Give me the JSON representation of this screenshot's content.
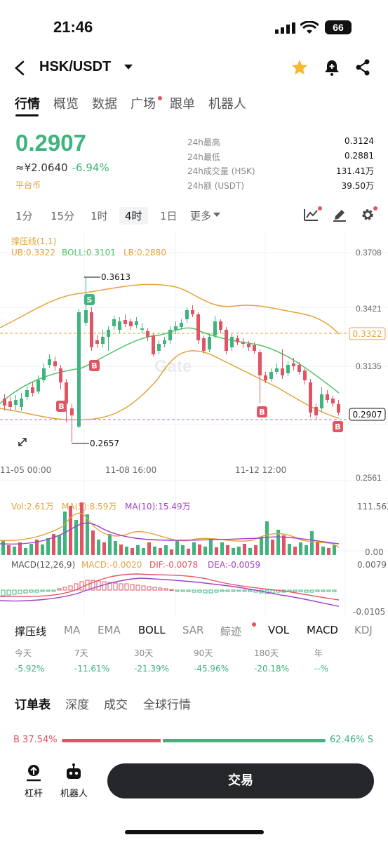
{
  "status": {
    "time": "21:46",
    "battery": "66"
  },
  "header": {
    "pair": "HSK/USDT"
  },
  "tabs": [
    "行情",
    "概览",
    "数据",
    "广场",
    "跟单",
    "机器人"
  ],
  "price": {
    "last": "0.2907",
    "fiat": "≈¥2.0640",
    "change": "-6.94%",
    "tag": "平台币"
  },
  "stats": [
    {
      "label": "24h最高",
      "value": "0.3124"
    },
    {
      "label": "24h最低",
      "value": "0.2881"
    },
    {
      "label": "24h成交量 (HSK)",
      "value": "131.41万"
    },
    {
      "label": "24h额 (USDT)",
      "value": "39.50万"
    }
  ],
  "timeframes": [
    "1分",
    "15分",
    "1时",
    "4时",
    "1日",
    "更多"
  ],
  "chart": {
    "indicator_label": "撑压线(1,1)",
    "boll": {
      "ub": "UB:0.3322",
      "mid": "BOLL:0.3101",
      "lb": "LB:0.2880"
    },
    "y_ticks": [
      "0.3708",
      "0.3421",
      "0.3135",
      "0.2561"
    ],
    "ub_tag": "0.3322",
    "price_tag": "0.2907",
    "high_label": "0.3613",
    "low_label": "0.2657",
    "x_ticks": [
      "11-05 00:00",
      "11-08 16:00",
      "11-12 12:00"
    ],
    "watermark": "Gate",
    "vol": {
      "vol": "Vol:2.61万",
      "ma5": "MA(5):8.59万",
      "ma10": "MA(10):15.49万",
      "top": "111.56万",
      "bottom": "0.00"
    },
    "macd": {
      "label": "MACD(12,26,9)",
      "macd": "MACD:-0.0020",
      "dif": "DIF:-0.0078",
      "dea": "DEA:-0.0059",
      "top": "0.0079",
      "bottom": "-0.0105"
    }
  },
  "indicator_tabs": [
    "撑压线",
    "MA",
    "EMA",
    "BOLL",
    "SAR",
    "鲸迹",
    "VOL",
    "MACD",
    "KDJ"
  ],
  "performance": [
    {
      "label": "今天",
      "value": "-5.92%"
    },
    {
      "label": "7天",
      "value": "-11.61%"
    },
    {
      "label": "30天",
      "value": "-21.39%"
    },
    {
      "label": "90天",
      "value": "-45.96%"
    },
    {
      "label": "180天",
      "value": "-20.18%"
    },
    {
      "label": "年",
      "value": "--%"
    }
  ],
  "book_tabs": [
    "订单表",
    "深度",
    "成交",
    "全球行情"
  ],
  "ratio": {
    "buy": "B 37.54%",
    "sell": "62.46% S",
    "buy_fraction": 0.3754
  },
  "bottom": {
    "leverage": "杠杆",
    "bot": "机器人",
    "trade": "交易"
  },
  "colors": {
    "up": "#3fb47e",
    "down": "#e05563",
    "accent": "#e6a23c"
  }
}
